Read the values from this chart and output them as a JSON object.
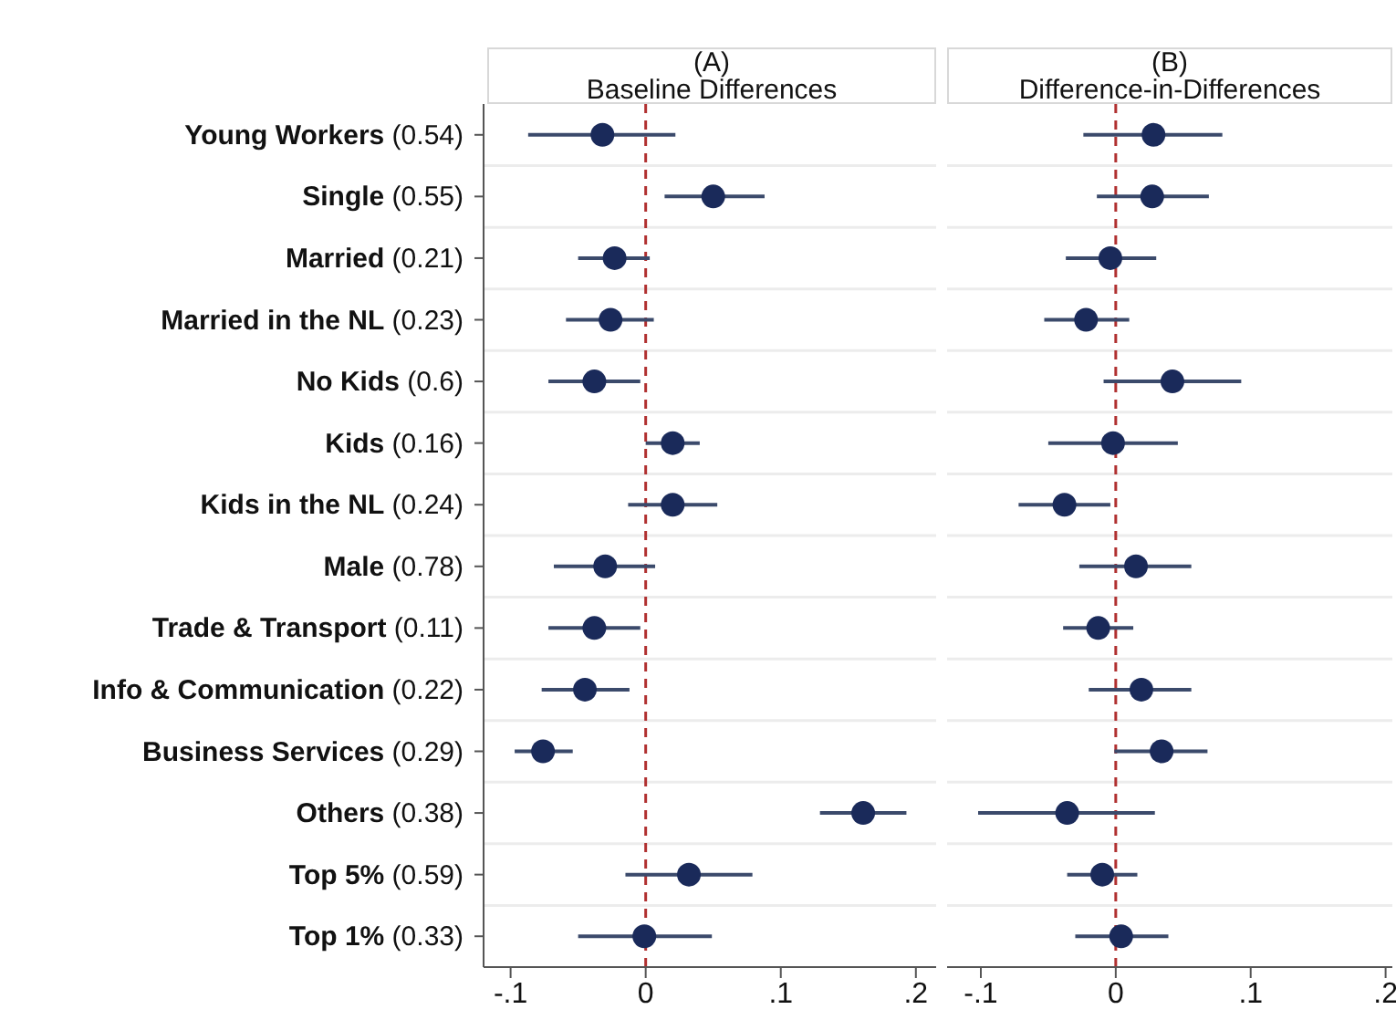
{
  "chart_data": [
    {
      "type": "scatter",
      "orientation": "horizontal",
      "title": "(A)",
      "subtitle": "Baseline Differences",
      "categories": [
        "Young Workers (0.54)",
        "Single (0.55)",
        "Married (0.21)",
        "Married in the NL (0.23)",
        "No Kids (0.6)",
        "Kids (0.16)",
        "Kids in the NL (0.24)",
        "Male (0.78)",
        "Trade & Transport (0.11)",
        "Info & Communication (0.22)",
        "Business Services (0.29)",
        "Others (0.38)",
        "Top 5% (0.59)",
        "Top 1% (0.33)"
      ],
      "series": [
        {
          "color": "#1a2a5a",
          "values": [
            -0.032,
            0.05,
            -0.023,
            -0.026,
            -0.038,
            0.02,
            0.02,
            -0.03,
            -0.038,
            -0.045,
            -0.076,
            0.161,
            0.032,
            -0.001
          ],
          "errors": [
            [
              -0.087,
              0.022
            ],
            [
              0.014,
              0.088
            ],
            [
              -0.05,
              0.003
            ],
            [
              -0.059,
              0.006
            ],
            [
              -0.072,
              -0.004
            ],
            [
              0,
              0.04
            ],
            [
              -0.013,
              0.053
            ],
            [
              -0.068,
              0.007
            ],
            [
              -0.072,
              -0.004
            ],
            [
              -0.077,
              -0.012
            ],
            [
              -0.097,
              -0.054
            ],
            [
              0.129,
              0.193
            ],
            [
              -0.015,
              0.079
            ],
            [
              -0.05,
              0.049
            ]
          ]
        }
      ],
      "xlim": [
        -0.12,
        0.215
      ],
      "xticks": [
        {
          "value": -0.1,
          "label": "-.1"
        },
        0,
        {
          "value": 0.1,
          "label": ".1"
        },
        {
          "value": 0.2,
          "label": ".2"
        }
      ],
      "ref_lines": [
        {
          "axis": "x",
          "value": 0,
          "color": "#b03030",
          "line_style": "dashed"
        }
      ],
      "grid": "y",
      "marker": "circle",
      "legend": false
    },
    {
      "type": "scatter",
      "orientation": "horizontal",
      "title": "(B)",
      "subtitle": "Difference-in-Differences",
      "categories": [
        null,
        null,
        null,
        null,
        null,
        null,
        null,
        null,
        null,
        null,
        null,
        null,
        null,
        null
      ],
      "series": [
        {
          "color": "#1a2a5a",
          "values": [
            0.028,
            0.027,
            -0.004,
            -0.022,
            0.042,
            -0.002,
            -0.038,
            0.015,
            -0.013,
            0.019,
            0.034,
            -0.036,
            -0.01,
            0.004
          ],
          "errors": [
            [
              -0.024,
              0.079
            ],
            [
              -0.014,
              0.069
            ],
            [
              -0.037,
              0.03
            ],
            [
              -0.053,
              0.01
            ],
            [
              -0.009,
              0.093
            ],
            [
              -0.05,
              0.046
            ],
            [
              -0.072,
              -0.004
            ],
            [
              -0.027,
              0.056
            ],
            [
              -0.039,
              0.013
            ],
            [
              -0.02,
              0.056
            ],
            [
              -0.001,
              0.068
            ],
            [
              -0.102,
              0.029
            ],
            [
              -0.036,
              0.016
            ],
            [
              -0.03,
              0.039
            ]
          ]
        }
      ],
      "xlim": [
        -0.125,
        0.205
      ],
      "xticks": [
        {
          "value": -0.1,
          "label": "-.1"
        },
        0,
        {
          "value": 0.1,
          "label": ".1"
        },
        {
          "value": 0.2,
          "label": ".2"
        }
      ],
      "ref_lines": [
        {
          "axis": "x",
          "value": 0,
          "color": "#b03030",
          "line_style": "dashed"
        }
      ],
      "grid": "y",
      "marker": "circle",
      "legend": false,
      "tick_labels": "x"
    }
  ]
}
